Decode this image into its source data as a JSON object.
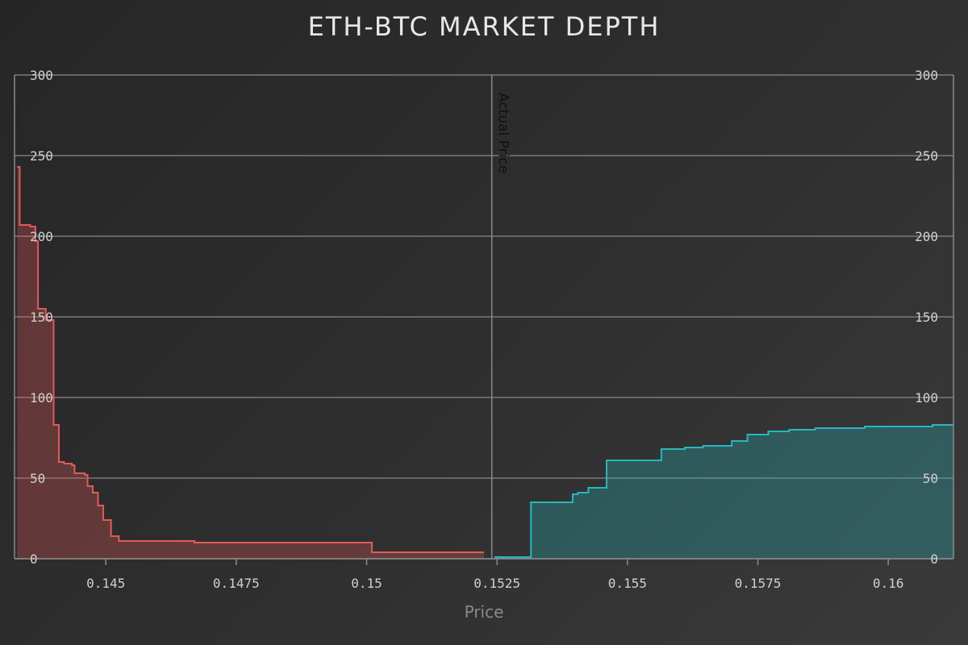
{
  "chart_data": {
    "type": "area",
    "title": "ETH-BTC MARKET DEPTH",
    "xlabel": "Price",
    "ylabel": "",
    "xlim": [
      0.14325,
      0.16125
    ],
    "ylim": [
      0,
      300
    ],
    "x_ticks": [
      "0.145",
      "0.1475",
      "0.15",
      "0.1525",
      "0.155",
      "0.1575",
      "0.16"
    ],
    "y_ticks_left": [
      "0",
      "50",
      "100",
      "150",
      "200",
      "250",
      "300"
    ],
    "y_ticks_right": [
      "0",
      "50",
      "100",
      "150",
      "200",
      "250",
      "300"
    ],
    "grid": true,
    "reference_line": {
      "label": "Actual Price",
      "x": 0.1524
    },
    "colors": {
      "bids": "#e25b55",
      "asks": "#27b7bd"
    },
    "series": [
      {
        "side": "bids",
        "points": [
          [
            0.1433,
            243
          ],
          [
            0.14335,
            207
          ],
          [
            0.14355,
            206
          ],
          [
            0.14365,
            197
          ],
          [
            0.1437,
            155
          ],
          [
            0.14385,
            148
          ],
          [
            0.144,
            83
          ],
          [
            0.1441,
            60
          ],
          [
            0.1442,
            59
          ],
          [
            0.14435,
            58
          ],
          [
            0.1444,
            53
          ],
          [
            0.1446,
            52
          ],
          [
            0.14465,
            45
          ],
          [
            0.14475,
            41
          ],
          [
            0.14485,
            33
          ],
          [
            0.14495,
            24
          ],
          [
            0.1451,
            14
          ],
          [
            0.14525,
            11
          ],
          [
            0.1467,
            10
          ],
          [
            0.1501,
            4
          ],
          [
            0.15225,
            4
          ]
        ]
      },
      {
        "side": "asks",
        "points": [
          [
            0.15245,
            1
          ],
          [
            0.15315,
            35
          ],
          [
            0.15395,
            40
          ],
          [
            0.15405,
            41
          ],
          [
            0.15425,
            44
          ],
          [
            0.1546,
            61
          ],
          [
            0.15565,
            68
          ],
          [
            0.1561,
            69
          ],
          [
            0.15645,
            70
          ],
          [
            0.157,
            73
          ],
          [
            0.1573,
            77
          ],
          [
            0.1577,
            79
          ],
          [
            0.1581,
            80
          ],
          [
            0.1583,
            80
          ],
          [
            0.1586,
            81
          ],
          [
            0.1592,
            81
          ],
          [
            0.15955,
            82
          ],
          [
            0.16085,
            83
          ],
          [
            0.16125,
            83
          ]
        ]
      }
    ]
  }
}
